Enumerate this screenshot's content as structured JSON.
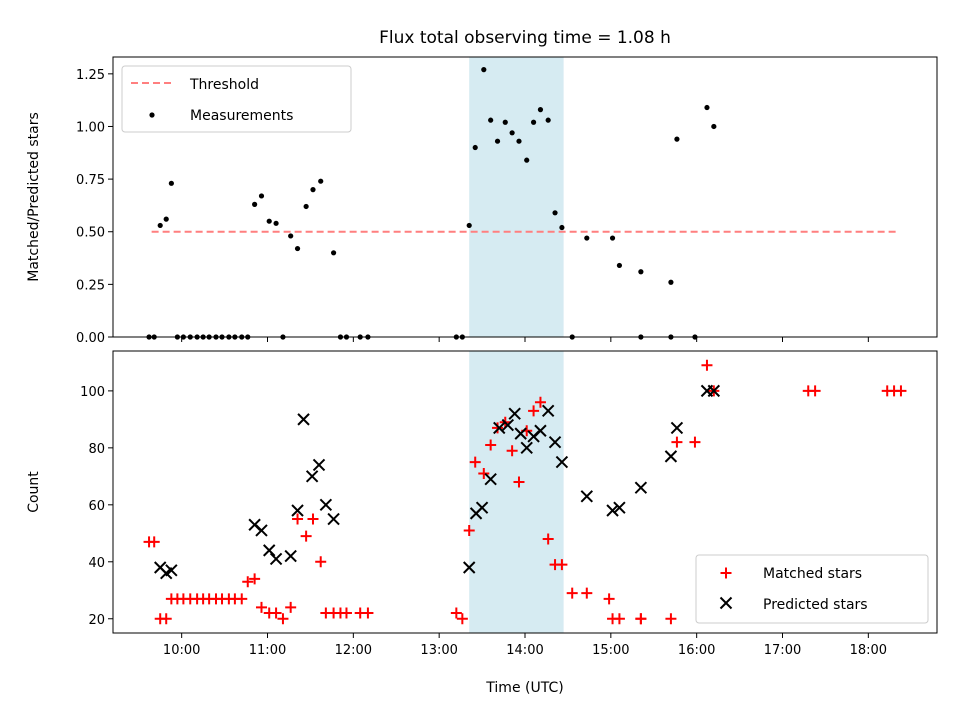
{
  "chart_data": [
    {
      "type": "scatter",
      "title": "Flux total observing time = 1.08 h",
      "xlabel": "",
      "ylabel": "Matched/Predicted stars",
      "ylim": [
        0,
        1.33
      ],
      "yticks": [
        0.0,
        0.25,
        0.5,
        0.75,
        1.0,
        1.25
      ],
      "ytick_labels": [
        "0.00",
        "0.25",
        "0.50",
        "0.75",
        "1.00",
        "1.25"
      ],
      "xlim": [
        9.2,
        18.8
      ],
      "xticks": [
        10,
        11,
        12,
        13,
        14,
        15,
        16,
        17,
        18
      ],
      "shaded_span": [
        13.35,
        14.45
      ],
      "shade_color": "#add8e6",
      "threshold": {
        "name": "Threshold",
        "value": 0.5,
        "x": [
          9.65,
          18.35
        ],
        "color": "#ff7f7f"
      },
      "legend_position": "upper left",
      "series": [
        {
          "name": "Measurements",
          "color": "#000000",
          "x": [
            9.62,
            9.68,
            9.75,
            9.82,
            9.88,
            9.95,
            10.02,
            10.1,
            10.18,
            10.25,
            10.32,
            10.4,
            10.47,
            10.55,
            10.62,
            10.7,
            10.77,
            10.85,
            10.93,
            11.02,
            11.1,
            11.18,
            11.27,
            11.35,
            11.45,
            11.53,
            11.62,
            11.77,
            11.85,
            11.92,
            12.08,
            12.17,
            13.2,
            13.27,
            13.35,
            13.42,
            13.52,
            13.6,
            13.68,
            13.77,
            13.85,
            13.93,
            14.02,
            14.1,
            14.18,
            14.27,
            14.35,
            14.43,
            14.55,
            14.72,
            15.02,
            15.1,
            15.35,
            15.35,
            15.7,
            15.7,
            15.77,
            15.98,
            16.12,
            16.2
          ],
          "y": [
            0.0,
            0.0,
            0.53,
            0.56,
            0.73,
            0.0,
            0.0,
            0.0,
            0.0,
            0.0,
            0.0,
            0.0,
            0.0,
            0.0,
            0.0,
            0.0,
            0.0,
            0.63,
            0.67,
            0.55,
            0.54,
            0.0,
            0.48,
            0.42,
            0.62,
            0.7,
            0.74,
            0.4,
            0.0,
            0.0,
            0.0,
            0.0,
            0.0,
            0.0,
            0.53,
            0.9,
            1.27,
            1.03,
            0.93,
            1.02,
            0.97,
            0.93,
            0.84,
            1.02,
            1.08,
            1.03,
            0.59,
            0.52,
            0.0,
            0.47,
            0.47,
            0.34,
            0.31,
            0.0,
            0.26,
            0.0,
            0.94,
            0.0,
            1.09,
            1.0
          ]
        }
      ]
    },
    {
      "type": "scatter",
      "title": "",
      "xlabel": "Time (UTC)",
      "ylabel": "Count",
      "ylim": [
        15,
        114
      ],
      "yticks": [
        20,
        40,
        60,
        80,
        100
      ],
      "ytick_labels": [
        "20",
        "40",
        "60",
        "80",
        "100"
      ],
      "xlim": [
        9.2,
        18.8
      ],
      "xticks": [
        10,
        11,
        12,
        13,
        14,
        15,
        16,
        17,
        18
      ],
      "xtick_labels": [
        "10:00",
        "11:00",
        "12:00",
        "13:00",
        "14:00",
        "15:00",
        "16:00",
        "17:00",
        "18:00"
      ],
      "shaded_span": [
        13.35,
        14.45
      ],
      "shade_color": "#add8e6",
      "legend_position": "lower right",
      "series": [
        {
          "name": "Matched stars",
          "marker": "plus",
          "color": "#ff0000",
          "x": [
            9.62,
            9.68,
            9.75,
            9.82,
            9.88,
            9.95,
            10.02,
            10.1,
            10.18,
            10.25,
            10.32,
            10.4,
            10.47,
            10.55,
            10.62,
            10.7,
            10.77,
            10.85,
            10.93,
            11.02,
            11.1,
            11.18,
            11.27,
            11.35,
            11.45,
            11.53,
            11.62,
            11.68,
            11.77,
            11.85,
            11.92,
            12.08,
            12.17,
            13.2,
            13.27,
            13.35,
            13.42,
            13.52,
            13.6,
            13.68,
            13.77,
            13.85,
            13.93,
            14.02,
            14.1,
            14.18,
            14.27,
            14.35,
            14.43,
            14.55,
            14.72,
            14.98,
            15.02,
            15.1,
            15.35,
            15.35,
            15.7,
            15.77,
            15.98,
            16.12,
            16.2,
            17.3,
            17.38,
            18.22,
            18.3,
            18.38
          ],
          "y": [
            47,
            47,
            20,
            20,
            27,
            27,
            27,
            27,
            27,
            27,
            27,
            27,
            27,
            27,
            27,
            27,
            33,
            34,
            24,
            22,
            22,
            20,
            24,
            55,
            49,
            55,
            40,
            22,
            22,
            22,
            22,
            22,
            22,
            22,
            20,
            51,
            75,
            71,
            81,
            87,
            89,
            79,
            68,
            86,
            93,
            96,
            48,
            39,
            39,
            29,
            29,
            27,
            20,
            20,
            20,
            20,
            20,
            82,
            82,
            109,
            100,
            100,
            100,
            100,
            100,
            100
          ]
        },
        {
          "name": "Predicted stars",
          "marker": "x",
          "color": "#000000",
          "x": [
            9.75,
            9.82,
            9.88,
            10.85,
            10.93,
            11.02,
            11.1,
            11.27,
            11.35,
            11.42,
            11.52,
            11.6,
            11.68,
            11.77,
            13.35,
            13.43,
            13.5,
            13.6,
            13.7,
            13.8,
            13.88,
            13.95,
            14.02,
            14.1,
            14.18,
            14.27,
            14.35,
            14.43,
            14.72,
            15.02,
            15.1,
            15.35,
            15.7,
            15.77,
            16.12,
            16.2
          ],
          "y": [
            38,
            36,
            37,
            53,
            51,
            44,
            41,
            42,
            58,
            90,
            70,
            74,
            60,
            55,
            38,
            57,
            59,
            69,
            87,
            88,
            92,
            85,
            80,
            84,
            86,
            93,
            82,
            75,
            63,
            58,
            59,
            66,
            77,
            87,
            100,
            100
          ]
        }
      ]
    }
  ]
}
